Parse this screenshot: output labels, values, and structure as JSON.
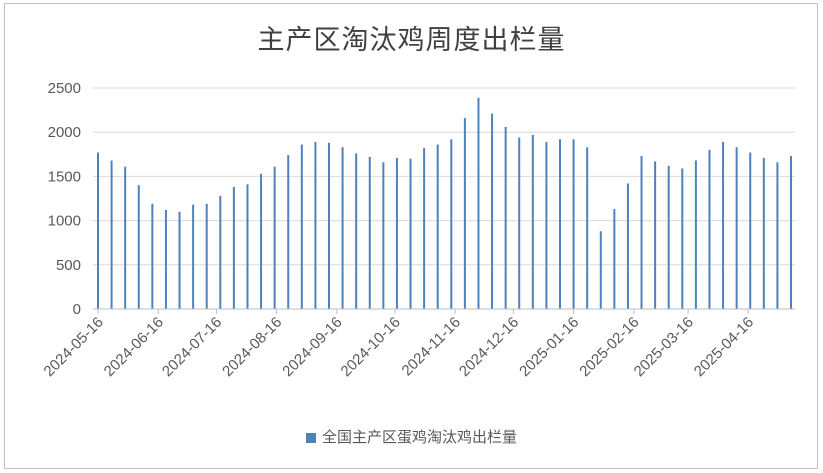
{
  "chart_data": {
    "type": "bar",
    "title": "主产区淘汰鸡周度出栏量",
    "xlabel": "",
    "ylabel": "",
    "ylim": [
      0,
      2500
    ],
    "yticks": [
      0,
      500,
      1000,
      1500,
      2000,
      2500
    ],
    "grid": true,
    "legend_position": "bottom",
    "x_tick_labels": [
      "2024-05-16",
      "2024-06-16",
      "2024-07-16",
      "2024-08-16",
      "2024-09-16",
      "2024-10-16",
      "2024-11-16",
      "2024-12-16",
      "2025-01-16",
      "2025-02-16",
      "2025-03-16",
      "2025-04-16"
    ],
    "series": [
      {
        "name": "全国主产区蛋鸡淘汰鸡出栏量",
        "color": "#4f81bd",
        "x": [
          "2024-05-16",
          "2024-05-23",
          "2024-05-30",
          "2024-06-06",
          "2024-06-13",
          "2024-06-20",
          "2024-06-27",
          "2024-07-04",
          "2024-07-11",
          "2024-07-18",
          "2024-07-25",
          "2024-08-01",
          "2024-08-08",
          "2024-08-15",
          "2024-08-22",
          "2024-08-29",
          "2024-09-05",
          "2024-09-12",
          "2024-09-19",
          "2024-09-26",
          "2024-10-03",
          "2024-10-10",
          "2024-10-17",
          "2024-10-24",
          "2024-10-31",
          "2024-11-07",
          "2024-11-14",
          "2024-11-21",
          "2024-11-28",
          "2024-12-05",
          "2024-12-12",
          "2024-12-19",
          "2024-12-26",
          "2025-01-02",
          "2025-01-09",
          "2025-01-16",
          "2025-01-23",
          "2025-01-30",
          "2025-02-06",
          "2025-02-13",
          "2025-02-20",
          "2025-02-27",
          "2025-03-06",
          "2025-03-13",
          "2025-03-20",
          "2025-03-27",
          "2025-04-03",
          "2025-04-10",
          "2025-04-17",
          "2025-04-24",
          "2025-05-01",
          "2025-05-08"
        ],
        "values": [
          1770,
          1680,
          1610,
          1400,
          1190,
          1120,
          1100,
          1180,
          1190,
          1280,
          1380,
          1410,
          1530,
          1610,
          1740,
          1860,
          1890,
          1880,
          1830,
          1760,
          1720,
          1660,
          1710,
          1700,
          1820,
          1860,
          1920,
          2160,
          2390,
          2210,
          2060,
          1940,
          1970,
          1890,
          1920,
          1920,
          1830,
          880,
          1130,
          1420,
          1730,
          1670,
          1620,
          1590,
          1680,
          1800,
          1890,
          1830,
          1770,
          1710,
          1660,
          1730
        ]
      }
    ]
  }
}
